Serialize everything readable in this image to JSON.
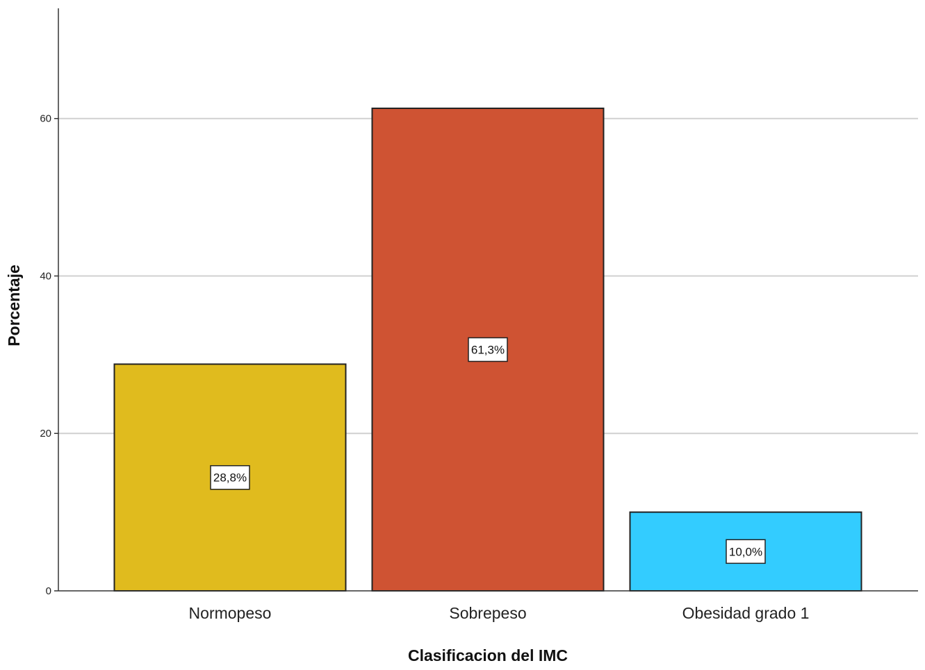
{
  "chart_data": {
    "type": "bar",
    "categories": [
      "Normopeso",
      "Sobrepeso",
      "Obesidad grado 1"
    ],
    "values": [
      28.8,
      61.3,
      10.0
    ],
    "data_labels": [
      "28,8%",
      "61,3%",
      "10,0%"
    ],
    "colors": [
      "#E0BB1E",
      "#CF5333",
      "#33CCFF"
    ],
    "xlabel": "Clasificacion del IMC",
    "ylabel": "Porcentaje",
    "ylim": [
      0,
      74
    ],
    "yticks": [
      0,
      20,
      40,
      60
    ],
    "grid": true,
    "grid_color": "#d0d0d0",
    "bar_edge_color": "#222222"
  }
}
